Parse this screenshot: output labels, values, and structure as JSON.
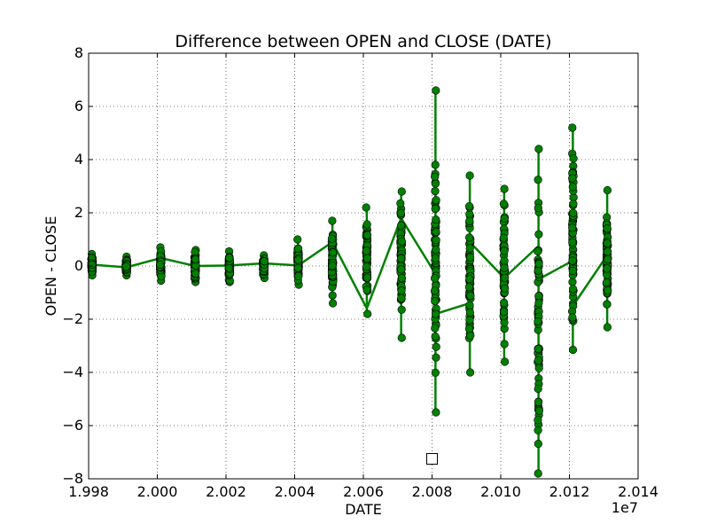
{
  "chart_data": {
    "type": "scatter",
    "title": "Difference between OPEN and CLOSE (DATE)",
    "xlabel": "DATE",
    "ylabel": "OPEN - CLOSE",
    "x_offset_label": "1e7",
    "xlim": [
      1.998,
      2.014
    ],
    "ylim": [
      -8,
      8
    ],
    "x_ticks": [
      1.998,
      2.0,
      2.002,
      2.004,
      2.006,
      2.008,
      2.01,
      2.012,
      2.014
    ],
    "x_tick_labels": [
      "1.998",
      "2.000",
      "2.002",
      "2.004",
      "2.006",
      "2.008",
      "2.010",
      "2.012",
      "2.014"
    ],
    "y_ticks": [
      -8,
      -6,
      -4,
      -2,
      0,
      2,
      4,
      6,
      8
    ],
    "y_tick_labels": [
      "−8",
      "−6",
      "−4",
      "−2",
      "0",
      "2",
      "4",
      "6",
      "8"
    ],
    "grid": true,
    "marker_color": "#008000",
    "marker_edge_color": "#000000",
    "line_color": "#008000",
    "clusters": [
      {
        "x": 1.9981,
        "min": -0.35,
        "max": 0.45
      },
      {
        "x": 1.9991,
        "min": -0.35,
        "max": 0.35
      },
      {
        "x": 2.0001,
        "min": -0.55,
        "max": 0.7
      },
      {
        "x": 2.0011,
        "min": -0.6,
        "max": 0.6
      },
      {
        "x": 2.0021,
        "min": -0.6,
        "max": 0.55
      },
      {
        "x": 2.0031,
        "min": -0.45,
        "max": 0.4
      },
      {
        "x": 2.0041,
        "min": -0.7,
        "max": 1.0
      },
      {
        "x": 2.0051,
        "min": -1.4,
        "max": 1.7
      },
      {
        "x": 2.0061,
        "min": -1.8,
        "max": 2.2
      },
      {
        "x": 2.0071,
        "min": -2.7,
        "max": 2.8
      },
      {
        "x": 2.0081,
        "min": -5.5,
        "max": 6.6
      },
      {
        "x": 2.0091,
        "min": -4.0,
        "max": 3.4
      },
      {
        "x": 2.0101,
        "min": -3.6,
        "max": 2.9
      },
      {
        "x": 2.0111,
        "min": -7.8,
        "max": 4.4
      },
      {
        "x": 2.0121,
        "min": -3.15,
        "max": 5.2
      },
      {
        "x": 2.0131,
        "min": -2.3,
        "max": 2.85
      }
    ],
    "line_path": [
      {
        "x": 1.9981,
        "y": 0.05
      },
      {
        "x": 1.9991,
        "y": -0.05
      },
      {
        "x": 2.0001,
        "y": 0.3
      },
      {
        "x": 2.0011,
        "y": 0.0
      },
      {
        "x": 2.0021,
        "y": 0.02
      },
      {
        "x": 2.0031,
        "y": 0.1
      },
      {
        "x": 2.0041,
        "y": 0.02
      },
      {
        "x": 2.0051,
        "y": 0.9
      },
      {
        "x": 2.0061,
        "y": -1.6
      },
      {
        "x": 2.0071,
        "y": 1.8
      },
      {
        "x": 2.0081,
        "y": -0.3
      },
      {
        "x": 2.0081,
        "y": -1.8
      },
      {
        "x": 2.0091,
        "y": -1.4
      },
      {
        "x": 2.0091,
        "y": 0.9
      },
      {
        "x": 2.0101,
        "y": -0.45
      },
      {
        "x": 2.0111,
        "y": 0.75
      },
      {
        "x": 2.0111,
        "y": -0.5
      },
      {
        "x": 2.0121,
        "y": 0.2
      },
      {
        "x": 2.0121,
        "y": -1.5
      },
      {
        "x": 2.0131,
        "y": 0.4
      }
    ],
    "square_marker": {
      "x": 2.008,
      "y": -7.25
    }
  }
}
